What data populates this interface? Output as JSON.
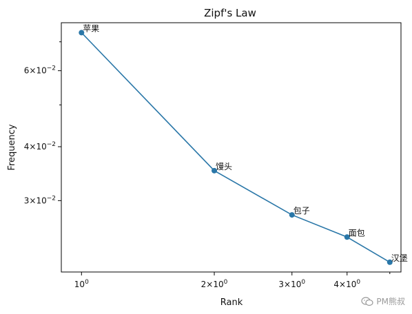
{
  "chart_data": {
    "type": "line",
    "title": "Zipf's Law",
    "xlabel": "Rank",
    "ylabel": "Frequency",
    "xscale": "log",
    "yscale": "log",
    "grid": false,
    "x": [
      1,
      2,
      3,
      4,
      5
    ],
    "labels": [
      "苹果",
      "馒头",
      "包子",
      "面包",
      "汉堡"
    ],
    "series": [
      {
        "values": [
          0.0735,
          0.0352,
          0.0278,
          0.0247,
          0.0216
        ],
        "color": "#2a77a8"
      }
    ],
    "xticks": [
      {
        "value": 1,
        "label": "10⁰",
        "mantissa": "",
        "base": "10",
        "exp": "0"
      },
      {
        "value": 2,
        "label": "2×10⁰",
        "mantissa": "2×",
        "base": "10",
        "exp": "0"
      },
      {
        "value": 3,
        "label": "3×10⁰",
        "mantissa": "3×",
        "base": "10",
        "exp": "0"
      },
      {
        "value": 4,
        "label": "4×10⁰",
        "mantissa": "4×",
        "base": "10",
        "exp": "0"
      }
    ],
    "yticks": [
      {
        "value": 0.03,
        "label": "3×10⁻²",
        "mantissa": "3×",
        "base": "10",
        "exp": "−2"
      },
      {
        "value": 0.04,
        "label": "4×10⁻²",
        "mantissa": "4×",
        "base": "10",
        "exp": "−2"
      },
      {
        "value": 0.06,
        "label": "6×10⁻²",
        "mantissa": "6×",
        "base": "10",
        "exp": "−2"
      }
    ],
    "yticks_minor": [
      0.05,
      0.07
    ],
    "xticks_minor": [
      5
    ],
    "xlim": [
      0.9,
      5.3
    ],
    "ylim": [
      0.0205,
      0.0775
    ]
  },
  "watermark": {
    "text": "PM熊叔",
    "icon": "wechat-icon"
  }
}
